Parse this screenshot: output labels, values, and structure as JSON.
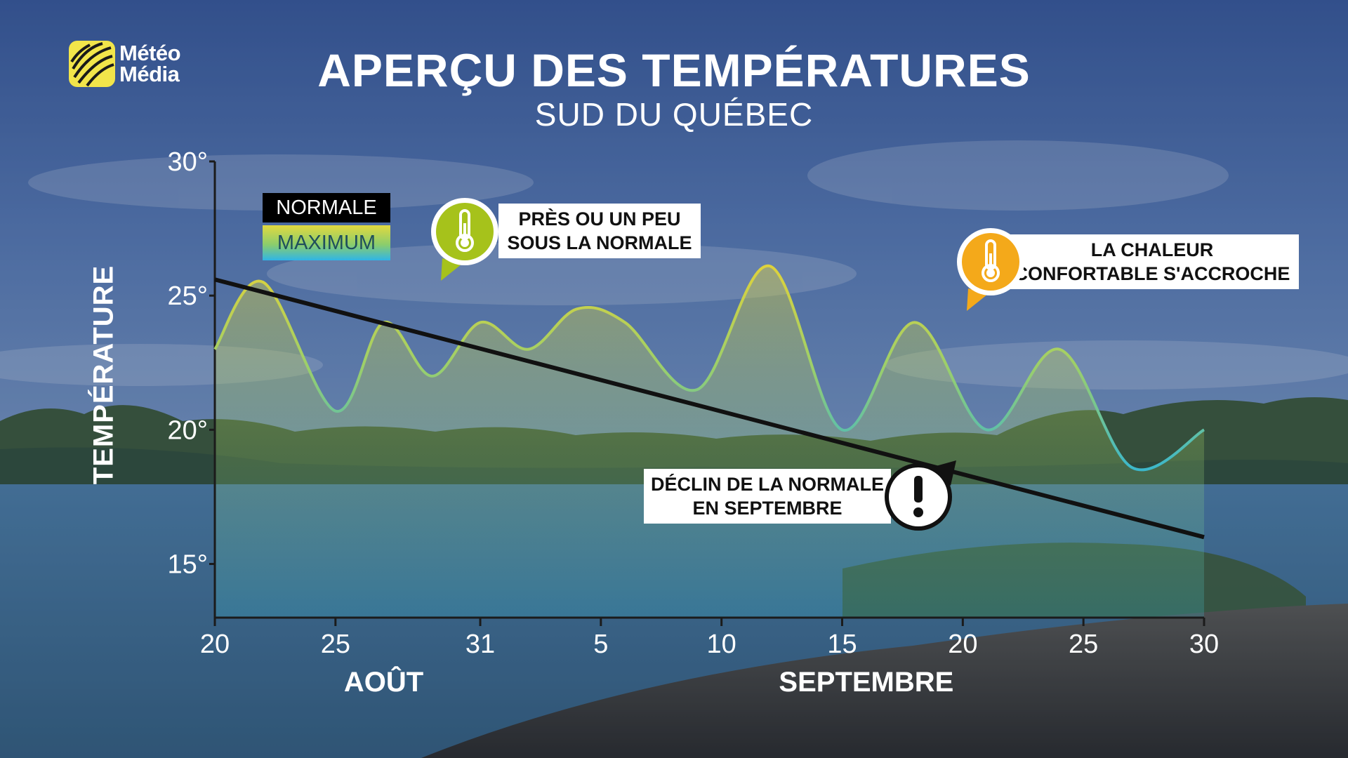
{
  "brand": {
    "line1": "Météo",
    "line2": "Média"
  },
  "colors": {
    "normal_line": "#111111",
    "max_warm": "#d9d23a",
    "max_mid": "#8fd07a",
    "max_cool": "#3cb6d4",
    "badge_green": "#a6c21b",
    "badge_orange": "#f4a91a"
  },
  "chart_data": {
    "type": "line",
    "title": "APERÇU DES TEMPÉRATURES",
    "subtitle": "SUD DU QUÉBEC",
    "ylabel": "TEMPÉRATURE",
    "ylim": [
      13,
      30
    ],
    "xlim": [
      "2024-08-20",
      "2024-09-30"
    ],
    "y_ticks": [
      "15°",
      "20°",
      "25°",
      "30°"
    ],
    "y_tick_values": [
      15,
      20,
      25,
      30
    ],
    "x_ticks": [
      {
        "date": "2024-08-20",
        "label": "20"
      },
      {
        "date": "2024-08-25",
        "label": "25"
      },
      {
        "date": "2024-08-31",
        "label": "31"
      },
      {
        "date": "2024-09-05",
        "label": "5"
      },
      {
        "date": "2024-09-10",
        "label": "10"
      },
      {
        "date": "2024-09-15",
        "label": "15"
      },
      {
        "date": "2024-09-20",
        "label": "20"
      },
      {
        "date": "2024-09-25",
        "label": "25"
      },
      {
        "date": "2024-09-30",
        "label": "30"
      }
    ],
    "months": [
      {
        "label": "AOÛT",
        "date": "2024-08-27"
      },
      {
        "label": "SEPTEMBRE",
        "date": "2024-09-16"
      }
    ],
    "legend": {
      "normal": "NORMALE",
      "maximum": "MAXIMUM",
      "placement": "top-left"
    },
    "series": [
      {
        "name": "NORMALE",
        "x": [
          "2024-08-20",
          "2024-09-30"
        ],
        "y": [
          25.6,
          16.0
        ]
      },
      {
        "name": "MAXIMUM",
        "x": [
          "2024-08-20",
          "2024-08-22",
          "2024-08-25",
          "2024-08-27",
          "2024-08-29",
          "2024-08-31",
          "2024-09-02",
          "2024-09-04",
          "2024-09-06",
          "2024-09-09",
          "2024-09-12",
          "2024-09-15",
          "2024-09-18",
          "2024-09-21",
          "2024-09-24",
          "2024-09-27",
          "2024-09-30"
        ],
        "y": [
          23.0,
          25.5,
          20.7,
          24.0,
          22.0,
          24.0,
          23.0,
          24.5,
          24.0,
          21.5,
          26.1,
          20.0,
          24.0,
          20.0,
          23.0,
          18.6,
          20.0
        ]
      }
    ],
    "annotations": [
      {
        "id": "near_normal",
        "text": [
          "PRÈS OU UN PEU",
          "SOUS LA NORMALE"
        ],
        "icon": "thermometer-icon"
      },
      {
        "id": "warm",
        "text": [
          "LA CHALEUR",
          "CONFORTABLE S'ACCROCHE"
        ],
        "icon": "thermometer-icon"
      },
      {
        "id": "decline",
        "text": [
          "DÉCLIN DE LA NORMALE",
          "EN SEPTEMBRE"
        ],
        "icon": "exclamation-icon"
      }
    ]
  }
}
